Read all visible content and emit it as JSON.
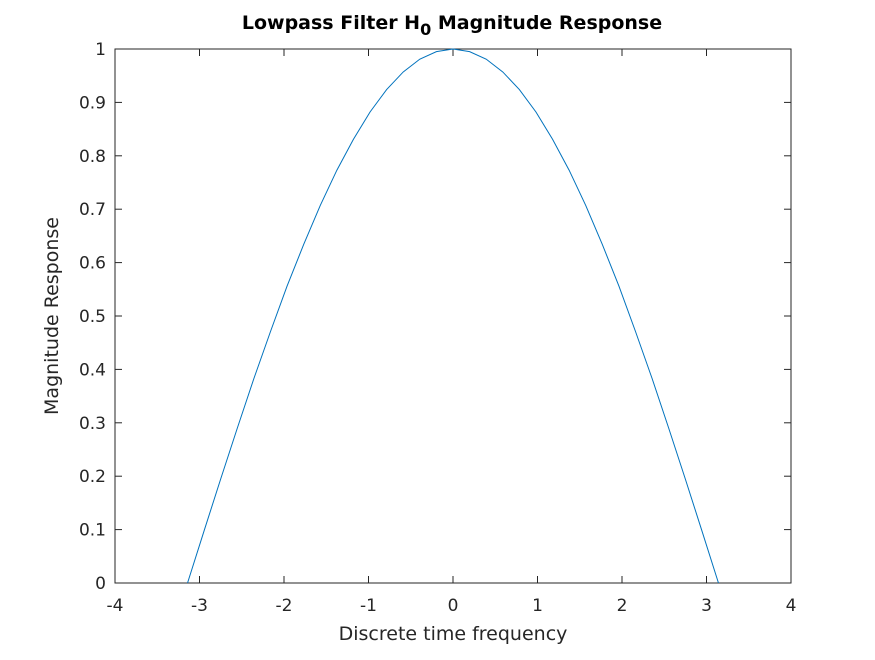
{
  "chart_data": {
    "type": "line",
    "title_main": "Lowpass Filter H",
    "title_sub": "0",
    "title_rest": " Magnitude Response",
    "xlabel": "Discrete time frequency",
    "ylabel": "Magnitude Response",
    "xlim": [
      -4,
      4
    ],
    "ylim": [
      0,
      1
    ],
    "xticks": [
      "-4",
      "-3",
      "-2",
      "-1",
      "0",
      "1",
      "2",
      "3",
      "4"
    ],
    "yticks": [
      "0",
      "0.1",
      "0.2",
      "0.3",
      "0.4",
      "0.5",
      "0.6",
      "0.7",
      "0.8",
      "0.9",
      "1"
    ],
    "grid": false,
    "line_color": "#0072BD",
    "series": [
      {
        "x": [
          -3.1416,
          -2.9452,
          -2.7489,
          -2.5525,
          -2.3562,
          -2.1598,
          -1.9635,
          -1.7671,
          -1.5708,
          -1.3744,
          -1.1781,
          -0.9817,
          -0.7854,
          -0.589,
          -0.3927,
          -0.1963,
          0,
          0.1963,
          0.3927,
          0.589,
          0.7854,
          0.9817,
          1.1781,
          1.3744,
          1.5708,
          1.7671,
          1.9635,
          2.1598,
          2.3562,
          2.5525,
          2.7489,
          2.9452,
          3.1416
        ],
        "values": [
          0,
          0.098,
          0.195,
          0.29,
          0.383,
          0.471,
          0.556,
          0.634,
          0.707,
          0.773,
          0.831,
          0.882,
          0.924,
          0.957,
          0.981,
          0.995,
          1,
          0.995,
          0.981,
          0.957,
          0.924,
          0.882,
          0.831,
          0.773,
          0.707,
          0.634,
          0.556,
          0.471,
          0.383,
          0.29,
          0.195,
          0.098,
          0
        ]
      }
    ]
  }
}
